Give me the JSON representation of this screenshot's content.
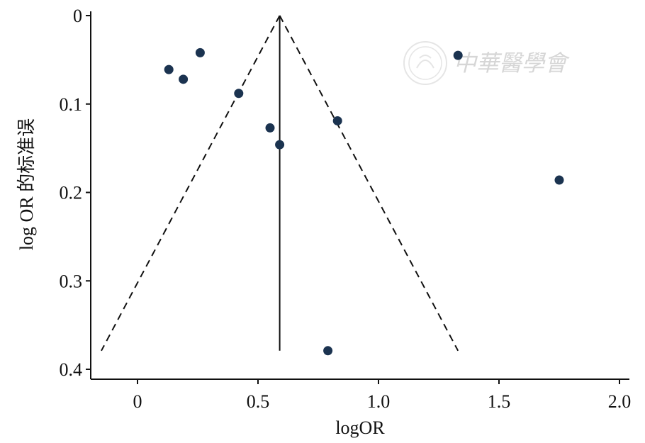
{
  "chart_data": {
    "type": "scatter",
    "title": "",
    "xlabel": "logOR",
    "ylabel": "log OR 的标准误",
    "xlim": [
      -0.2,
      2.05
    ],
    "ylim": [
      0,
      0.41
    ],
    "y_reversed": true,
    "x_ticks": [
      0,
      0.5,
      1.0,
      1.5,
      2.0
    ],
    "x_tick_labels": [
      "0",
      "0.5",
      "1.0",
      "1.5",
      "2.0"
    ],
    "y_ticks": [
      0,
      0.1,
      0.2,
      0.3,
      0.4
    ],
    "y_tick_labels": [
      "0",
      "0.1",
      "0.2",
      "0.3",
      "0.4"
    ],
    "grid": false,
    "point_color": "#1b3350",
    "line_color": "#111111",
    "points": [
      {
        "x": 0.13,
        "y": 0.061
      },
      {
        "x": 0.19,
        "y": 0.072
      },
      {
        "x": 0.26,
        "y": 0.042
      },
      {
        "x": 0.42,
        "y": 0.088
      },
      {
        "x": 0.55,
        "y": 0.127
      },
      {
        "x": 0.59,
        "y": 0.146
      },
      {
        "x": 0.79,
        "y": 0.379
      },
      {
        "x": 0.83,
        "y": 0.119
      },
      {
        "x": 1.33,
        "y": 0.045
      },
      {
        "x": 1.75,
        "y": 0.186
      }
    ],
    "pooled_estimate": 0.59,
    "funnel_apex": [
      0.59,
      0
    ],
    "funnel_base_y": 0.379,
    "funnel_base_x": [
      -0.15,
      1.33
    ]
  },
  "watermark": {
    "text": "中華醫學會",
    "color": "#d6d6d6"
  }
}
